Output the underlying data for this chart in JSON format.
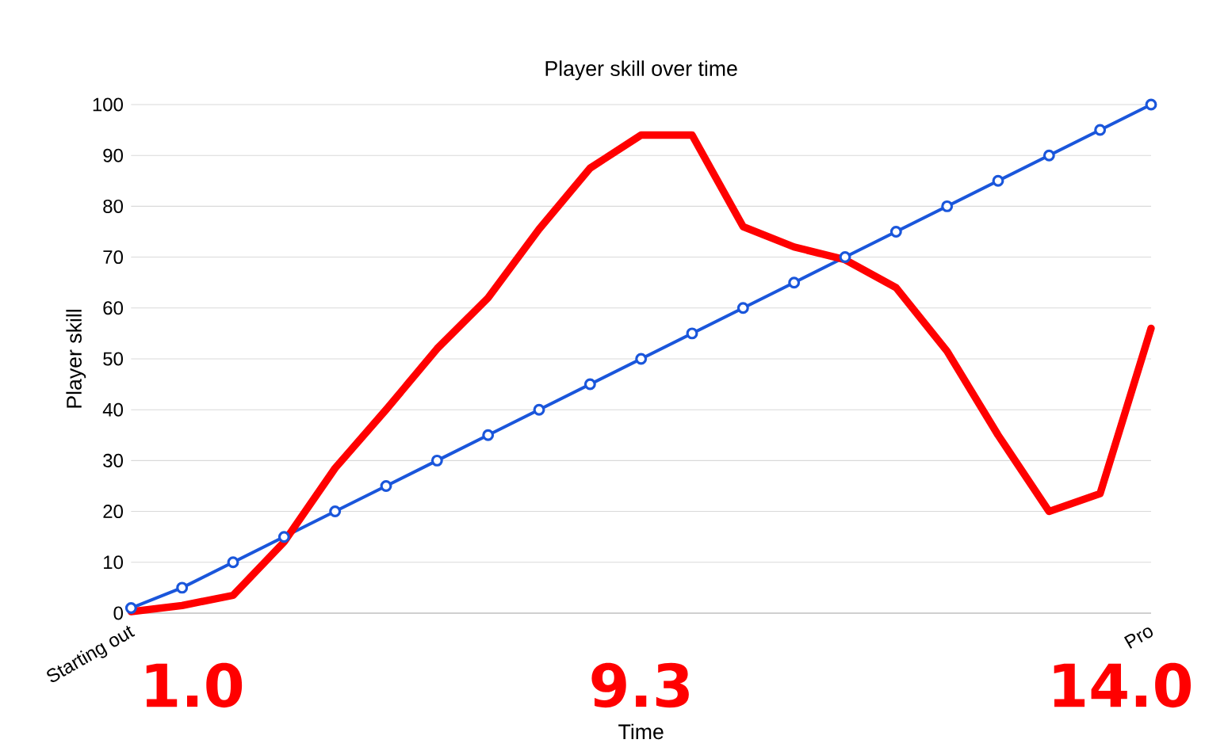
{
  "chart_data": {
    "type": "line",
    "title": "Player skill over time",
    "xlabel": "Time",
    "ylabel": "Player skill",
    "categories": [
      "Starting out",
      null,
      null,
      null,
      null,
      null,
      null,
      null,
      null,
      null,
      null,
      null,
      null,
      null,
      null,
      null,
      null,
      null,
      null,
      null,
      "Pro"
    ],
    "ylim": [
      0,
      100
    ],
    "yticks": [
      0,
      10,
      20,
      30,
      40,
      50,
      60,
      70,
      80,
      90,
      100
    ],
    "grid": "y",
    "annotations": [
      "1.0",
      "9.3",
      "14.0"
    ],
    "series": [
      {
        "color": "#1a56db",
        "marker": "circle",
        "values": [
          1,
          5,
          10,
          15,
          20,
          25,
          30,
          35,
          40,
          45,
          50,
          55,
          60,
          65,
          70,
          75,
          80,
          85,
          90,
          95,
          100
        ]
      },
      {
        "color": "#ff0000",
        "marker": "none",
        "values": [
          0.3,
          1.5,
          3.5,
          14,
          28.5,
          40,
          52,
          62,
          75.5,
          87.5,
          94,
          94,
          76,
          72,
          69.5,
          64,
          51.5,
          35,
          20,
          23.5,
          56
        ]
      }
    ]
  }
}
